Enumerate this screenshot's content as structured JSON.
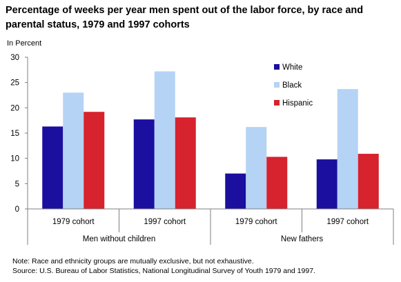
{
  "title": "Percentage of weeks per year men spent out of the labor force, by race and parental status, 1979 and 1997 cohorts",
  "chart_data": {
    "type": "bar",
    "title": "Percentage of weeks per year men spent out of the labor force, by race and parental status, 1979 and 1997 cohorts",
    "ylabel": "In Percent",
    "xlabel": "",
    "ylim": [
      0,
      30
    ],
    "yticks": [
      "0",
      "5",
      "10",
      "15",
      "20",
      "25",
      "30"
    ],
    "grid": false,
    "legend_position": "top-right",
    "groups": [
      {
        "label": "Men without children",
        "categories": [
          "1979 cohort",
          "1997 cohort"
        ]
      },
      {
        "label": "New fathers",
        "categories": [
          "1979 cohort",
          "1997 cohort"
        ]
      }
    ],
    "categories": [
      "1979 cohort",
      "1997 cohort",
      "1979 cohort",
      "1997 cohort"
    ],
    "series": [
      {
        "name": "White",
        "color": "#1a0f9e",
        "values": [
          16.3,
          17.7,
          7.0,
          9.8
        ]
      },
      {
        "name": "Black",
        "color": "#b5d3f5",
        "values": [
          23.0,
          27.2,
          16.2,
          23.7
        ]
      },
      {
        "name": "Hispanic",
        "color": "#d6232e",
        "values": [
          19.2,
          18.1,
          10.3,
          10.9
        ]
      }
    ]
  },
  "notes": [
    "Note: Race and ethnicity groups are mutually exclusive, but not exhaustive.",
    "Source: U.S. Bureau of Labor Statistics, National Longitudinal Survey of Youth 1979 and 1997."
  ]
}
